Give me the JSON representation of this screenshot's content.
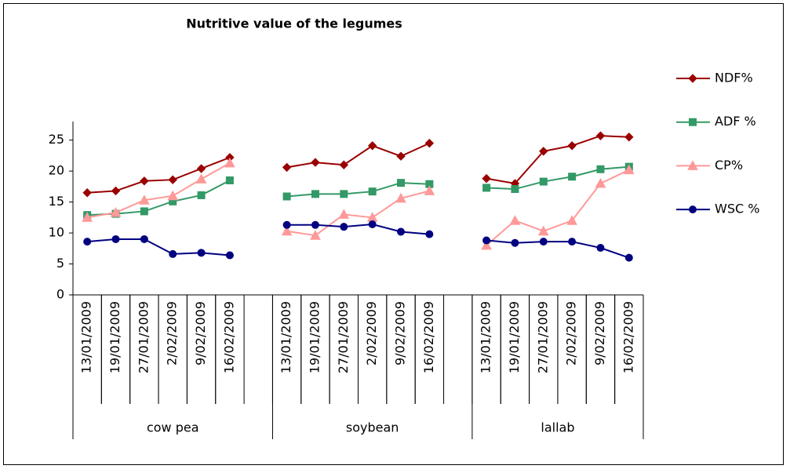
{
  "chart_data": {
    "type": "line",
    "title": "Nutritive value of the legumes",
    "categories": [
      "13/01/2009",
      "19/01/2009",
      "27/01/2009",
      "2/02/2009",
      "9/02/2009",
      "16/02/2009",
      null,
      "13/01/2009",
      "19/01/2009",
      "27/01/2009",
      "2/02/2009",
      "9/02/2009",
      "16/02/2009",
      null,
      "13/01/2009",
      "19/01/2009",
      "27/01/2009",
      "2/02/2009",
      "9/02/2009",
      "16/02/2009"
    ],
    "groups": [
      "cow pea",
      "soybean",
      "lallab"
    ],
    "series": [
      {
        "name": "NDF%",
        "color": "#990000",
        "marker": "diamond",
        "values": [
          16.5,
          16.8,
          18.4,
          18.6,
          20.4,
          22.2,
          null,
          20.6,
          21.4,
          21.0,
          24.1,
          22.4,
          24.5,
          null,
          18.8,
          18.0,
          23.2,
          24.1,
          25.7,
          25.5
        ]
      },
      {
        "name": "ADF %",
        "color": "#339966",
        "marker": "square",
        "values": [
          12.9,
          13.1,
          13.5,
          15.1,
          16.1,
          18.5,
          null,
          15.9,
          16.3,
          16.3,
          16.7,
          18.1,
          17.9,
          null,
          17.3,
          17.1,
          18.3,
          19.1,
          20.3,
          20.7
        ]
      },
      {
        "name": "CP%",
        "color": "#ff9999",
        "marker": "triangle",
        "values": [
          12.5,
          13.3,
          15.3,
          16.0,
          18.7,
          21.3,
          null,
          10.3,
          9.6,
          13.0,
          12.5,
          15.6,
          16.8,
          null,
          8.0,
          12.0,
          10.3,
          12.0,
          18.0,
          20.2
        ]
      },
      {
        "name": "WSC %",
        "color": "#000080",
        "marker": "circle",
        "values": [
          8.6,
          9.0,
          9.0,
          6.6,
          6.8,
          6.4,
          null,
          11.3,
          11.3,
          11.0,
          11.4,
          10.2,
          9.8,
          null,
          8.8,
          8.4,
          8.6,
          8.6,
          7.6,
          6.0
        ]
      }
    ],
    "ylim": [
      0,
      28
    ],
    "yticks": [
      0,
      5,
      10,
      15,
      20,
      25
    ],
    "grid": false,
    "legend": "right"
  }
}
